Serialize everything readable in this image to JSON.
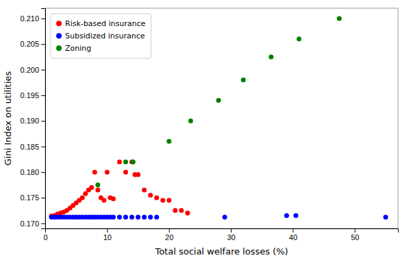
{
  "chart_data": {
    "type": "scatter",
    "xlabel": "Total social welfare losses (%)",
    "ylabel": "Gini Index on utilities",
    "xlim": [
      0,
      57
    ],
    "ylim": [
      0.169,
      0.212
    ],
    "xticks": [
      0,
      10,
      20,
      30,
      40,
      50
    ],
    "yticks": [
      {
        "value": 0.17,
        "label": "0.170"
      },
      0.175,
      {
        "value": 0.18,
        "label": "0.180"
      },
      0.185,
      {
        "value": 0.19,
        "label": "0.190"
      },
      0.195,
      {
        "value": 0.2,
        "label": "0.200"
      },
      0.205,
      {
        "value": 0.21,
        "label": "0.210"
      }
    ],
    "grid": false,
    "legend": "upper left",
    "series": [
      {
        "name": "Risk-based insurance",
        "color": "red",
        "x": [
          1.0,
          1.5,
          2.0,
          2.5,
          3.0,
          3.5,
          4.0,
          4.5,
          5.0,
          5.5,
          6.0,
          6.5,
          7.0,
          7.5,
          8.0,
          8.5,
          9.0,
          9.5,
          10.0,
          10.5,
          11.0,
          12.0,
          13.0,
          14.0,
          14.5,
          15.0,
          16.0,
          17.0,
          18.0,
          19.0,
          20.0,
          21.0,
          22.0,
          23.0
        ],
        "values": [
          0.1714,
          0.1715,
          0.1718,
          0.172,
          0.1722,
          0.1725,
          0.173,
          0.1735,
          0.174,
          0.1745,
          0.175,
          0.1758,
          0.1765,
          0.177,
          0.18,
          0.1765,
          0.175,
          0.1745,
          0.18,
          0.175,
          0.1748,
          0.182,
          0.18,
          0.182,
          0.1795,
          0.1795,
          0.1765,
          0.1755,
          0.175,
          0.1745,
          0.1745,
          0.1725,
          0.1725,
          0.172
        ]
      },
      {
        "name": "Subsidized insurance",
        "color": "blue",
        "x": [
          1.0,
          1.5,
          2.0,
          2.5,
          3.0,
          3.5,
          4.0,
          4.5,
          5.0,
          5.5,
          6.0,
          6.5,
          7.0,
          7.5,
          8.0,
          8.5,
          9.0,
          9.5,
          10.0,
          10.5,
          11.0,
          12.0,
          13.0,
          14.0,
          15.0,
          16.0,
          17.0,
          18.0,
          29.0,
          39.0,
          40.5,
          55.0
        ],
        "values": [
          0.1712,
          0.1712,
          0.1712,
          0.1712,
          0.1712,
          0.1712,
          0.1712,
          0.1712,
          0.1712,
          0.1712,
          0.1712,
          0.1712,
          0.1712,
          0.1712,
          0.1712,
          0.1712,
          0.1712,
          0.1712,
          0.1712,
          0.1712,
          0.1712,
          0.1712,
          0.1712,
          0.1712,
          0.1712,
          0.1712,
          0.1712,
          0.1712,
          0.1712,
          0.1715,
          0.1715,
          0.1712
        ]
      },
      {
        "name": "Zoning",
        "color": "green",
        "x": [
          8.5,
          13.0,
          14.2,
          20.0,
          23.5,
          28.0,
          32.0,
          36.5,
          41.0,
          47.5
        ],
        "values": [
          0.1775,
          0.182,
          0.182,
          0.186,
          0.19,
          0.194,
          0.198,
          0.2025,
          0.206,
          0.21
        ]
      }
    ]
  }
}
